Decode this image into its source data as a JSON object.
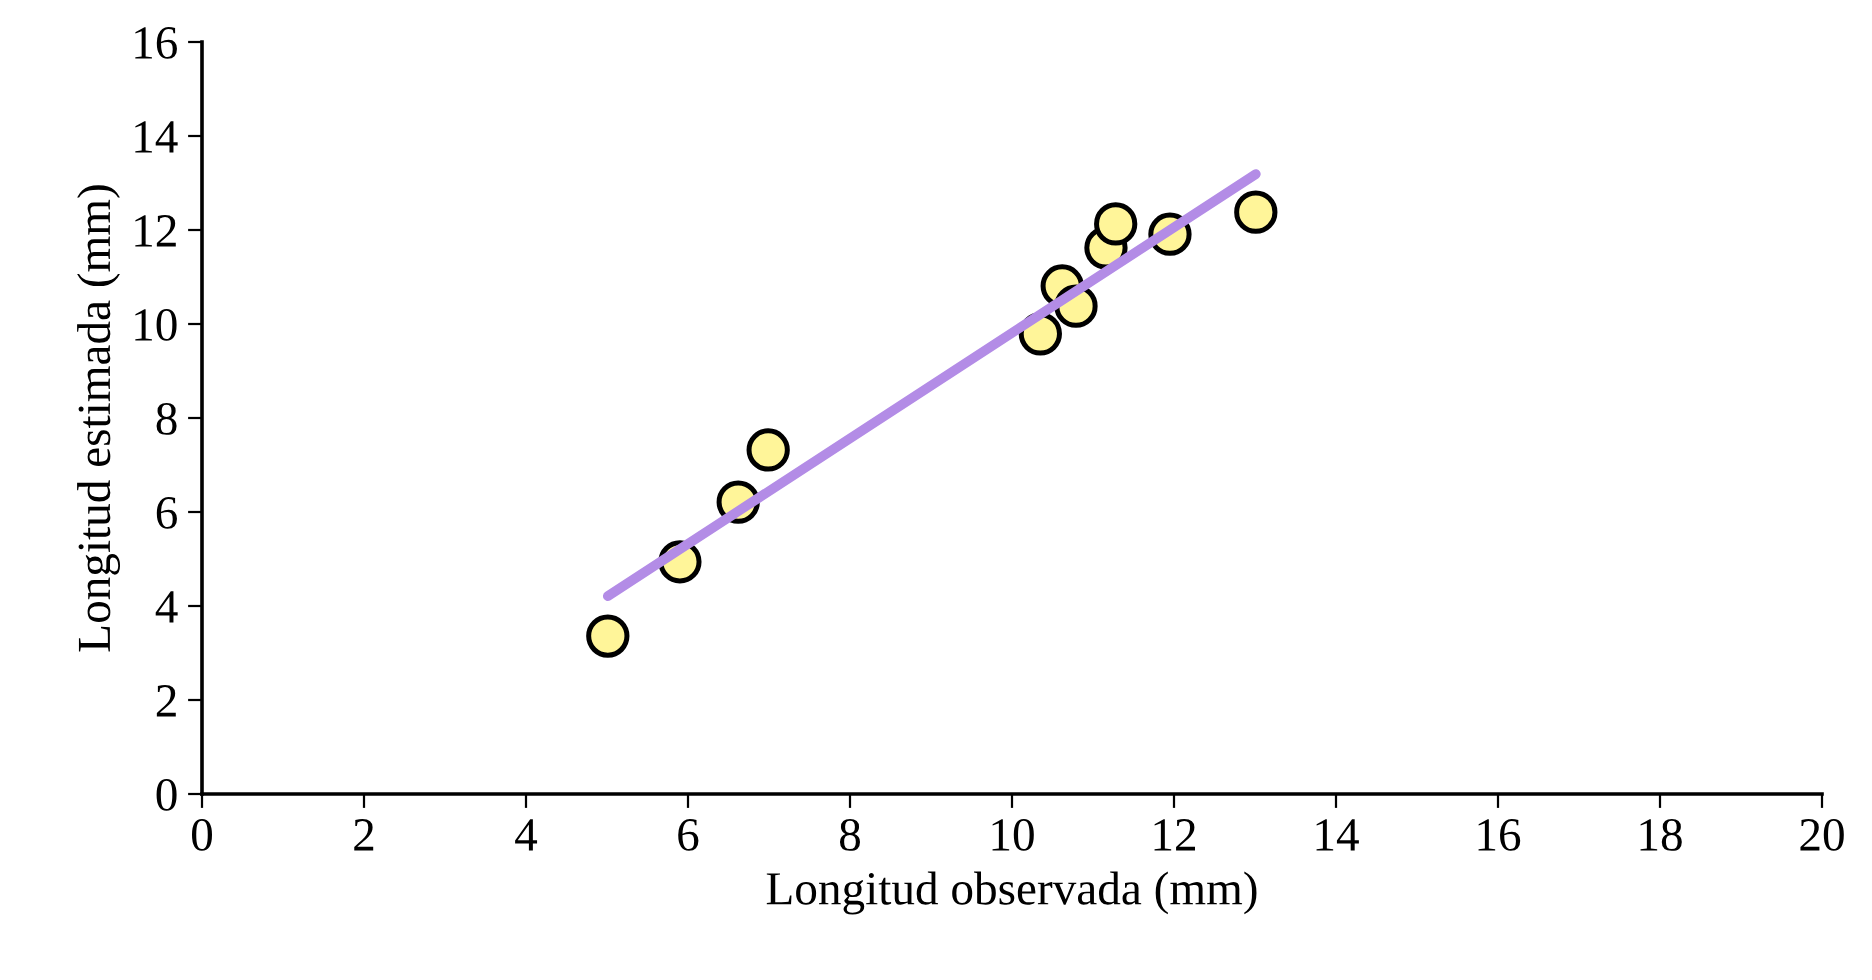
{
  "chart_data": {
    "type": "scatter",
    "xlabel": "Longitud observada (mm)",
    "ylabel": "Longitud estimada (mm)",
    "xlim": [
      0,
      20
    ],
    "xticks": [
      0,
      2,
      4,
      6,
      8,
      10,
      12,
      14,
      16,
      18,
      20
    ],
    "ylim": [
      0,
      16
    ],
    "yticks": [
      0,
      2,
      4,
      6,
      8,
      10,
      12,
      14,
      16
    ],
    "grid": false,
    "legend": false,
    "series": [
      {
        "marker": "circle",
        "color": "#fff599",
        "x": [
          5.01,
          5.9,
          6.62,
          6.99,
          10.35,
          10.62,
          10.79,
          11.16,
          11.28,
          11.95,
          13.01
        ],
        "values": [
          3.36,
          4.94,
          6.21,
          7.32,
          9.79,
          10.81,
          10.38,
          11.62,
          12.13,
          11.91,
          12.38
        ]
      },
      {
        "type": "line",
        "color": "#b38ce6",
        "x": [
          5.01,
          13.01
        ],
        "values": [
          4.21,
          13.19
        ]
      }
    ]
  }
}
